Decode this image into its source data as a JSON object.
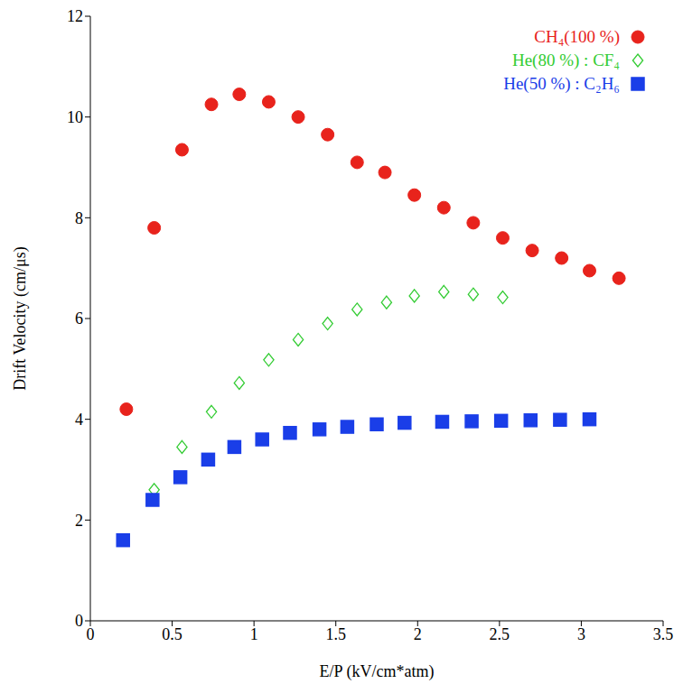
{
  "chart_data": {
    "type": "scatter",
    "x_label": "E/P (kV/cm*atm)",
    "y_label": "Drift Velocity (cm/μs)",
    "xlim": [
      0,
      3.5
    ],
    "xticks": [
      0,
      0.5,
      1,
      1.5,
      2,
      2.5,
      3,
      3.5
    ],
    "ylim": [
      0,
      12
    ],
    "yticks": [
      0,
      2,
      4,
      6,
      8,
      10,
      12
    ],
    "grid": false,
    "legend": "upper right",
    "series": [
      {
        "name": "CH₄(100 %)",
        "color": "#e8231c",
        "marker": "circle",
        "x": [
          0.22,
          0.39,
          0.56,
          0.74,
          0.91,
          1.09,
          1.27,
          1.45,
          1.63,
          1.8,
          1.98,
          2.16,
          2.34,
          2.52,
          2.7,
          2.88,
          3.05,
          3.23
        ],
        "values": [
          4.2,
          7.8,
          9.35,
          10.25,
          10.45,
          10.3,
          10.0,
          9.65,
          9.1,
          8.9,
          8.45,
          8.2,
          7.9,
          7.6,
          7.35,
          7.2,
          6.95,
          6.8
        ]
      },
      {
        "name": "He(80 %) : CF₄",
        "color": "#33cc33",
        "marker": "open_diamond",
        "x": [
          0.39,
          0.56,
          0.74,
          0.91,
          1.09,
          1.27,
          1.45,
          1.63,
          1.81,
          1.98,
          2.16,
          2.34,
          2.52
        ],
        "values": [
          2.6,
          3.45,
          4.15,
          4.72,
          5.18,
          5.58,
          5.9,
          6.18,
          6.32,
          6.45,
          6.53,
          6.48,
          6.42
        ]
      },
      {
        "name": "He(50 %) : C₂H₆",
        "color": "#1a3ee8",
        "marker": "square",
        "x": [
          0.2,
          0.38,
          0.55,
          0.72,
          0.88,
          1.05,
          1.22,
          1.4,
          1.57,
          1.75,
          1.92,
          2.15,
          2.33,
          2.51,
          2.69,
          2.87,
          3.05
        ],
        "values": [
          1.6,
          2.4,
          2.85,
          3.2,
          3.45,
          3.6,
          3.73,
          3.8,
          3.85,
          3.9,
          3.93,
          3.95,
          3.96,
          3.97,
          3.98,
          3.99,
          4.0
        ]
      }
    ]
  }
}
